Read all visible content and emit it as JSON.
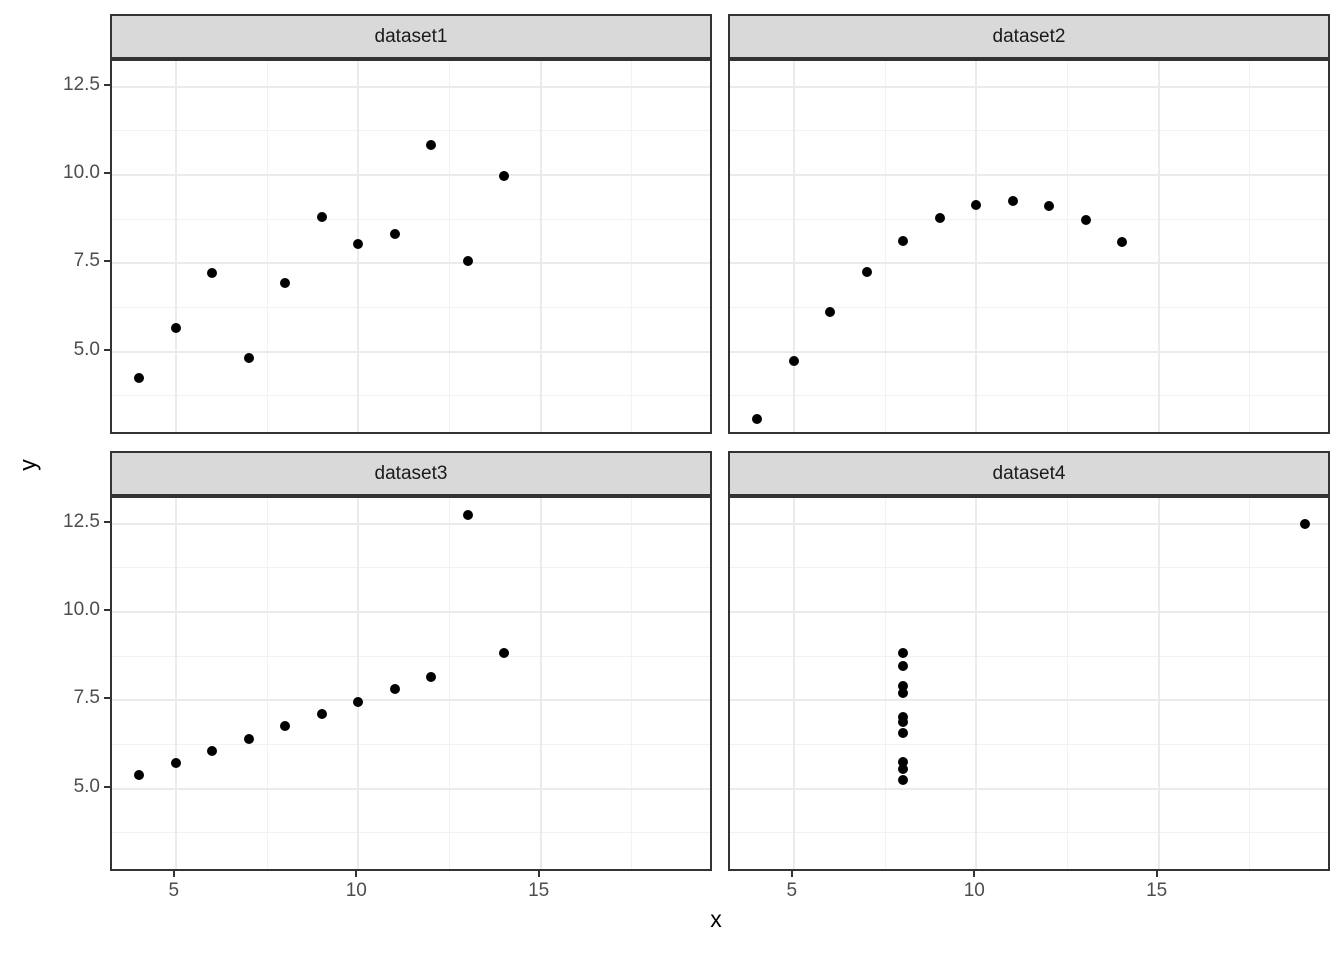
{
  "chart_data": {
    "type": "scatter",
    "title": "",
    "xlabel": "x",
    "ylabel": "y",
    "legend": "none",
    "grid": "major+minor",
    "xlim": [
      3.25,
      19.75
    ],
    "ylim": [
      2.618,
      13.222
    ],
    "x_ticks": [
      5,
      10,
      15
    ],
    "x_tick_labels": [
      "5",
      "10",
      "15"
    ],
    "y_ticks": [
      5.0,
      7.5,
      10.0,
      12.5
    ],
    "y_tick_labels": [
      "5.0",
      "7.5",
      "10.0",
      "12.5"
    ],
    "x_minor_gridlines": [
      7.5,
      12.5,
      17.5
    ],
    "y_minor_gridlines": [
      3.75,
      6.25,
      8.75,
      11.25
    ],
    "point_color": "#000000",
    "strip_fill": "#d9d9d9",
    "panel_border_color": "#333333",
    "major_grid_color": "#ebebeb",
    "minor_grid_color": "#f2f2f2",
    "tick_label_color": "#4d4d4d",
    "facets": [
      {
        "label": "dataset1",
        "x": [
          10,
          8,
          13,
          9,
          11,
          14,
          6,
          4,
          12,
          7,
          5
        ],
        "y": [
          8.04,
          6.95,
          7.58,
          8.81,
          8.33,
          9.96,
          7.24,
          4.26,
          10.84,
          4.82,
          5.68
        ]
      },
      {
        "label": "dataset2",
        "x": [
          10,
          8,
          13,
          9,
          11,
          14,
          6,
          4,
          12,
          7,
          5
        ],
        "y": [
          9.14,
          8.14,
          8.74,
          8.77,
          9.26,
          8.1,
          6.13,
          3.1,
          9.13,
          7.26,
          4.74
        ]
      },
      {
        "label": "dataset3",
        "x": [
          10,
          8,
          13,
          9,
          11,
          14,
          6,
          4,
          12,
          7,
          5
        ],
        "y": [
          7.46,
          6.77,
          12.74,
          7.11,
          7.81,
          8.84,
          6.08,
          5.39,
          8.15,
          6.42,
          5.73
        ]
      },
      {
        "label": "dataset4",
        "x": [
          8,
          8,
          8,
          8,
          8,
          8,
          8,
          19,
          8,
          8,
          8
        ],
        "y": [
          6.58,
          5.76,
          7.71,
          8.84,
          8.47,
          7.04,
          5.25,
          12.5,
          5.56,
          7.91,
          6.89
        ]
      }
    ]
  }
}
